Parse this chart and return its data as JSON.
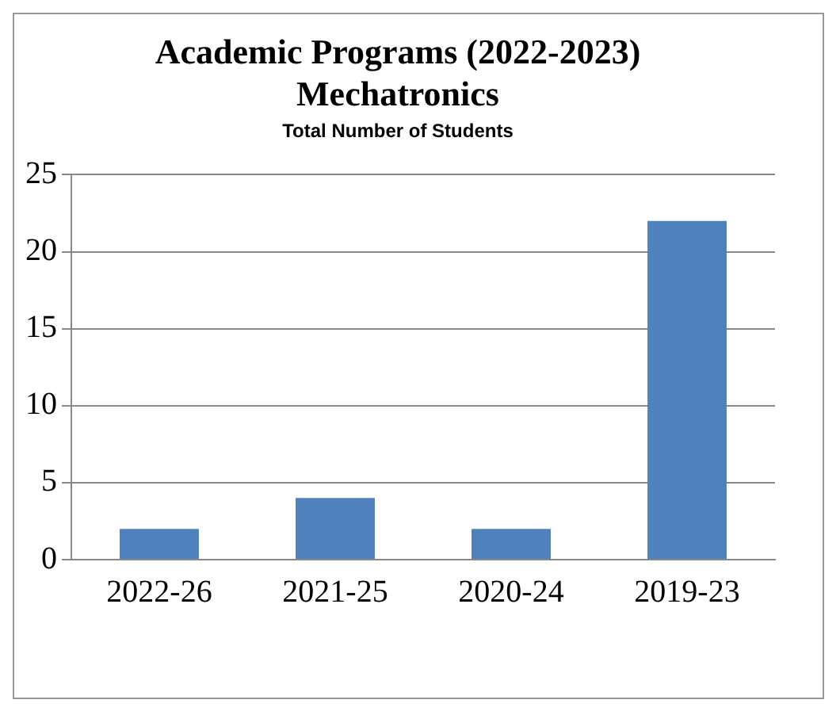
{
  "chart_data": {
    "type": "bar",
    "title": "Academic Programs (2022-2023)\nMechatronics",
    "subtitle": "Total Number of Students",
    "categories": [
      "2022-26",
      "2021-25",
      "2020-24",
      "2019-23"
    ],
    "values": [
      2,
      4,
      2,
      22
    ],
    "color": "#4f81bd",
    "ylim": [
      0,
      25
    ],
    "yticks": [
      0,
      5,
      10,
      15,
      20,
      25
    ],
    "grid": "y",
    "legend": false
  }
}
